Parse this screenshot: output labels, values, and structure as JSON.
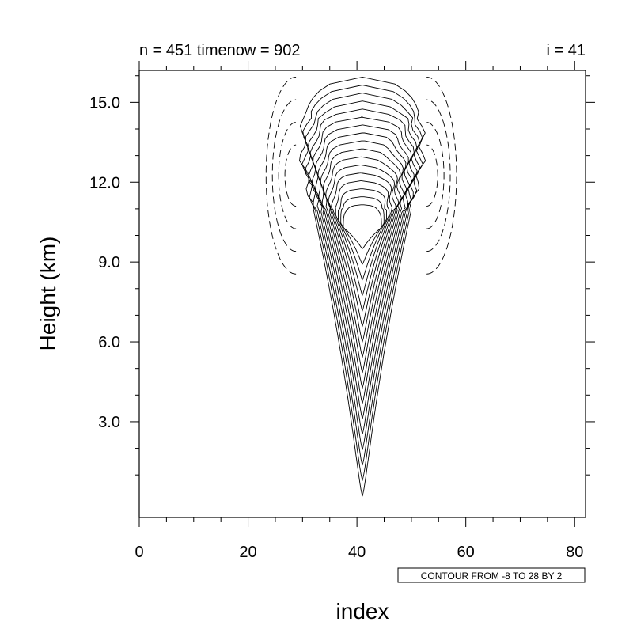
{
  "chart_data": {
    "type": "contour",
    "title_left": "n = 451 timenow = 902",
    "title_right": "i = 41",
    "xlabel": "index",
    "ylabel": "Height (km)",
    "xlim": [
      0,
      82
    ],
    "ylim": [
      -0.6,
      16.2
    ],
    "xticks": [
      0,
      20,
      40,
      60,
      80
    ],
    "xtick_labels": [
      "0",
      "20",
      "40",
      "60",
      "80"
    ],
    "yticks": [
      3,
      6,
      9,
      12,
      15
    ],
    "ytick_labels": [
      "3.0",
      "6.0",
      "9.0",
      "12.0",
      "15.0"
    ],
    "contour_info": "CONTOUR FROM -8 TO 28 BY 2",
    "contour_levels": {
      "min": -8,
      "max": 28,
      "step": 2
    },
    "negative_contours_style": "dashed",
    "positive_contours_style": "solid",
    "grid": false
  }
}
